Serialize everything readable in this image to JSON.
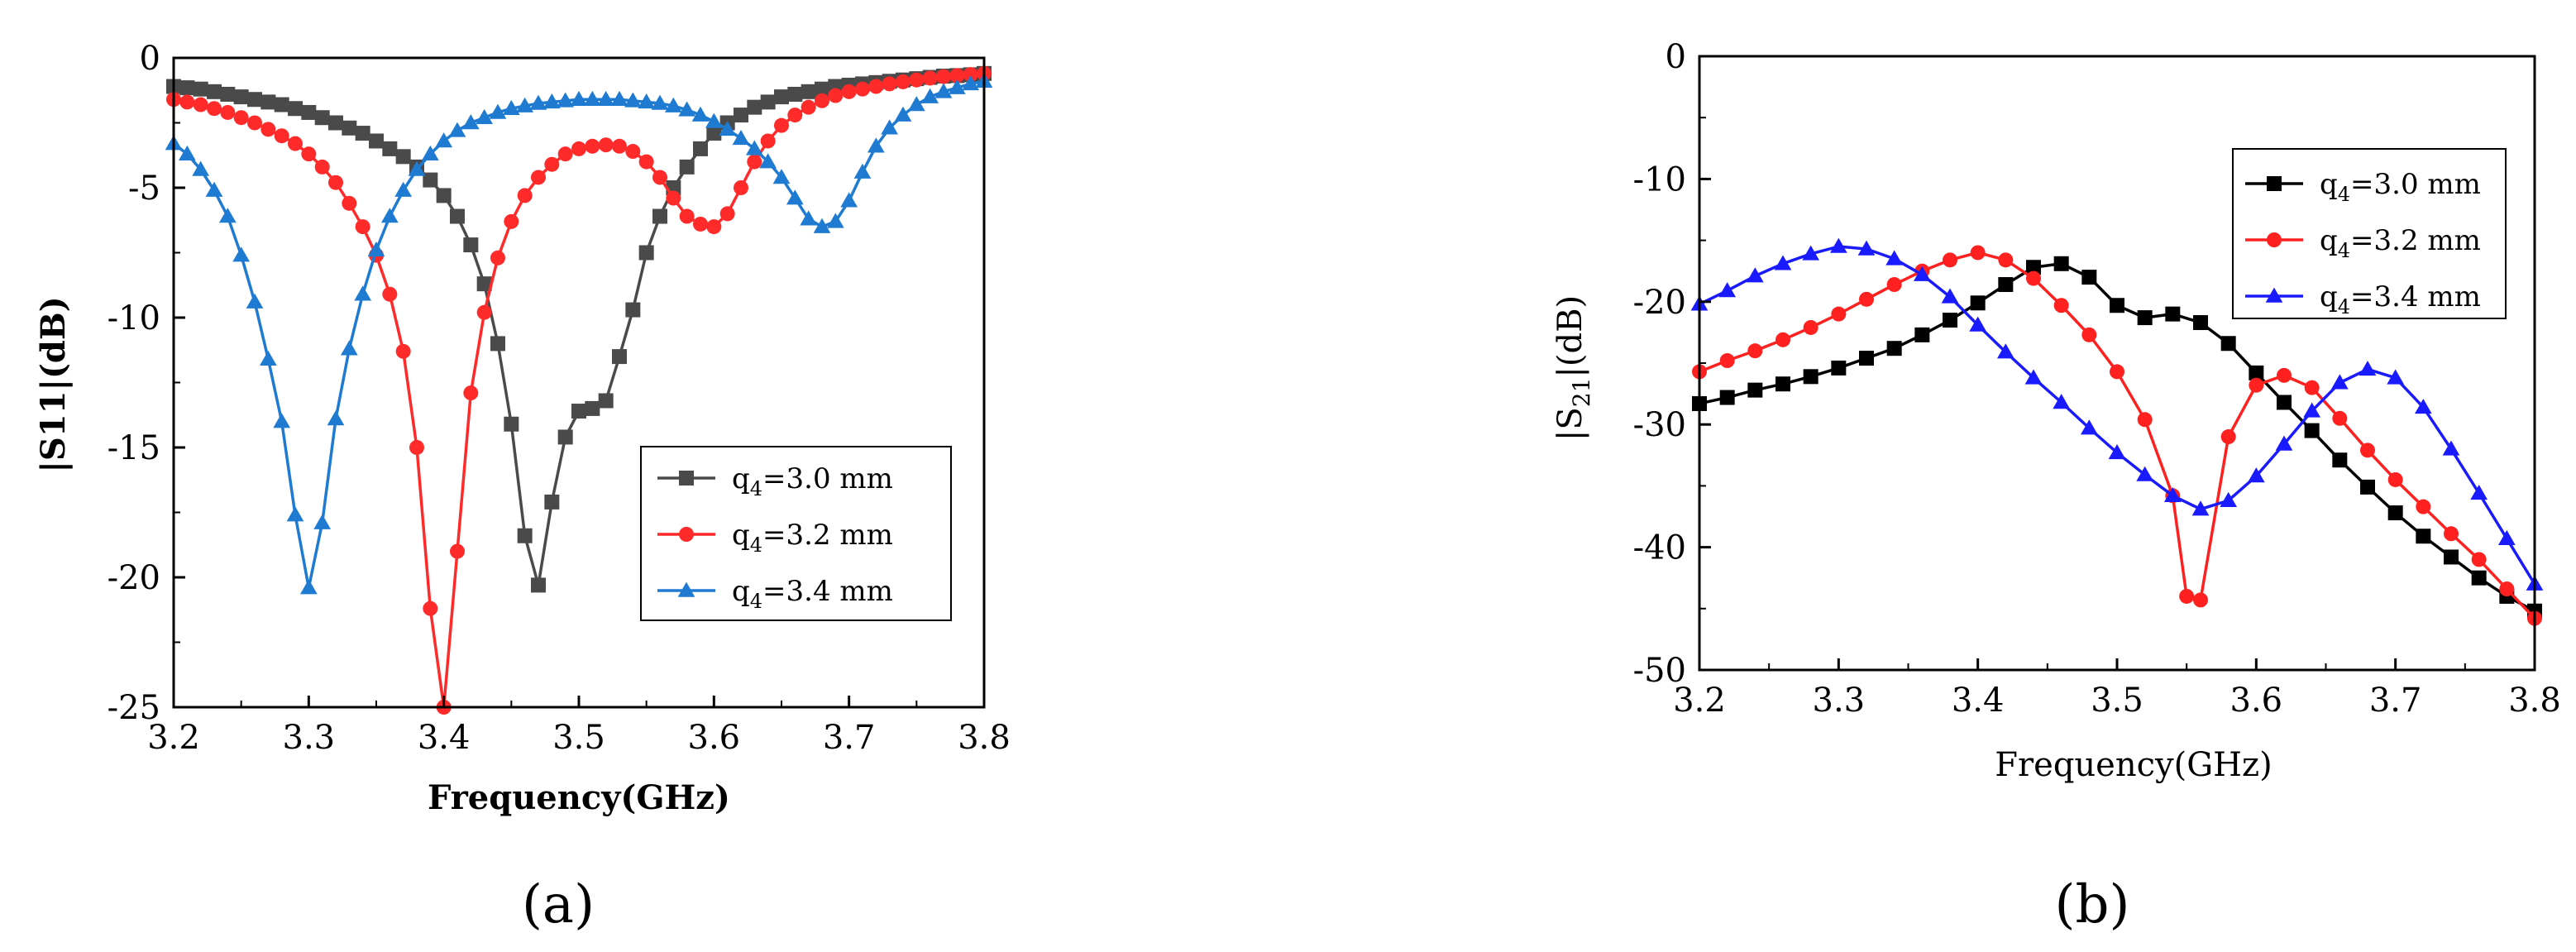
{
  "chart_data": [
    {
      "type": "line",
      "panel_label": "(a)",
      "xlabel": "Frequency(GHz)",
      "ylabel": "|S11|(dB)",
      "xlim": [
        3.2,
        3.8
      ],
      "ylim": [
        -25,
        0
      ],
      "xticks": [
        "3.2",
        "3.3",
        "3.4",
        "3.5",
        "3.6",
        "3.7",
        "3.8"
      ],
      "yticks": [
        "0",
        "-5",
        "-10",
        "-15",
        "-20",
        "-25"
      ],
      "legend_position": "bottom-right",
      "series": [
        {
          "name_main": "q",
          "name_sub": "4",
          "name_rest": "=3.0 mm",
          "color": "#4a4a4a",
          "marker": "square",
          "x": [
            3.2,
            3.21,
            3.22,
            3.23,
            3.24,
            3.25,
            3.26,
            3.27,
            3.28,
            3.29,
            3.3,
            3.31,
            3.32,
            3.33,
            3.34,
            3.35,
            3.36,
            3.37,
            3.38,
            3.39,
            3.4,
            3.41,
            3.42,
            3.43,
            3.44,
            3.45,
            3.46,
            3.47,
            3.48,
            3.49,
            3.5,
            3.51,
            3.52,
            3.53,
            3.54,
            3.55,
            3.56,
            3.57,
            3.58,
            3.59,
            3.6,
            3.61,
            3.62,
            3.63,
            3.64,
            3.65,
            3.66,
            3.67,
            3.68,
            3.69,
            3.7,
            3.71,
            3.72,
            3.73,
            3.74,
            3.75,
            3.76,
            3.77,
            3.78,
            3.79,
            3.8
          ],
          "y": [
            -1.1,
            -1.15,
            -1.2,
            -1.3,
            -1.4,
            -1.5,
            -1.6,
            -1.7,
            -1.8,
            -1.95,
            -2.1,
            -2.3,
            -2.5,
            -2.7,
            -2.9,
            -3.2,
            -3.5,
            -3.8,
            -4.2,
            -4.7,
            -5.3,
            -6.1,
            -7.2,
            -8.7,
            -11.0,
            -14.1,
            -18.4,
            -20.3,
            -17.1,
            -14.6,
            -13.6,
            -13.5,
            -13.2,
            -11.5,
            -9.7,
            -7.5,
            -6.1,
            -5.0,
            -4.2,
            -3.5,
            -2.9,
            -2.5,
            -2.2,
            -1.9,
            -1.7,
            -1.5,
            -1.4,
            -1.3,
            -1.2,
            -1.1,
            -1.05,
            -1.0,
            -0.95,
            -0.9,
            -0.85,
            -0.8,
            -0.75,
            -0.7,
            -0.68,
            -0.65,
            -0.6
          ]
        },
        {
          "name_main": "q",
          "name_sub": "4",
          "name_rest": "=3.2 mm",
          "color": "#ff2a2a",
          "marker": "circle",
          "x": [
            3.2,
            3.21,
            3.22,
            3.23,
            3.24,
            3.25,
            3.26,
            3.27,
            3.28,
            3.29,
            3.3,
            3.31,
            3.32,
            3.33,
            3.34,
            3.35,
            3.36,
            3.37,
            3.38,
            3.39,
            3.4,
            3.41,
            3.42,
            3.43,
            3.44,
            3.45,
            3.46,
            3.47,
            3.48,
            3.49,
            3.5,
            3.51,
            3.52,
            3.53,
            3.54,
            3.55,
            3.56,
            3.57,
            3.58,
            3.59,
            3.6,
            3.61,
            3.62,
            3.63,
            3.64,
            3.65,
            3.66,
            3.67,
            3.68,
            3.69,
            3.7,
            3.71,
            3.72,
            3.73,
            3.74,
            3.75,
            3.76,
            3.77,
            3.78,
            3.79,
            3.8
          ],
          "y": [
            -1.6,
            -1.7,
            -1.8,
            -1.95,
            -2.1,
            -2.3,
            -2.5,
            -2.75,
            -3.0,
            -3.3,
            -3.7,
            -4.2,
            -4.8,
            -5.6,
            -6.5,
            -7.6,
            -9.1,
            -11.3,
            -15.0,
            -21.2,
            -25.0,
            -19.0,
            -12.9,
            -9.8,
            -7.7,
            -6.3,
            -5.3,
            -4.6,
            -4.1,
            -3.7,
            -3.5,
            -3.4,
            -3.35,
            -3.4,
            -3.6,
            -4.0,
            -4.6,
            -5.4,
            -6.1,
            -6.4,
            -6.5,
            -6.0,
            -5.0,
            -4.0,
            -3.2,
            -2.6,
            -2.2,
            -1.9,
            -1.65,
            -1.45,
            -1.3,
            -1.2,
            -1.1,
            -1.0,
            -0.92,
            -0.85,
            -0.78,
            -0.72,
            -0.68,
            -0.64,
            -0.6
          ]
        },
        {
          "name_main": "q",
          "name_sub": "4",
          "name_rest": "=3.4 mm",
          "color": "#1f7ad1",
          "marker": "triangle",
          "x": [
            3.2,
            3.21,
            3.22,
            3.23,
            3.24,
            3.25,
            3.26,
            3.27,
            3.28,
            3.29,
            3.3,
            3.31,
            3.32,
            3.33,
            3.34,
            3.35,
            3.36,
            3.37,
            3.38,
            3.39,
            3.4,
            3.41,
            3.42,
            3.43,
            3.44,
            3.45,
            3.46,
            3.47,
            3.48,
            3.49,
            3.5,
            3.51,
            3.52,
            3.53,
            3.54,
            3.55,
            3.56,
            3.57,
            3.58,
            3.59,
            3.6,
            3.61,
            3.62,
            3.63,
            3.64,
            3.65,
            3.66,
            3.67,
            3.68,
            3.69,
            3.7,
            3.71,
            3.72,
            3.73,
            3.74,
            3.75,
            3.76,
            3.77,
            3.78,
            3.79,
            3.8
          ],
          "y": [
            -3.3,
            -3.7,
            -4.3,
            -5.1,
            -6.1,
            -7.6,
            -9.4,
            -11.6,
            -14.0,
            -17.6,
            -20.4,
            -17.9,
            -13.9,
            -11.2,
            -9.1,
            -7.4,
            -6.1,
            -5.1,
            -4.3,
            -3.7,
            -3.2,
            -2.8,
            -2.5,
            -2.3,
            -2.1,
            -1.95,
            -1.85,
            -1.75,
            -1.7,
            -1.65,
            -1.6,
            -1.6,
            -1.6,
            -1.6,
            -1.65,
            -1.7,
            -1.75,
            -1.85,
            -2.0,
            -2.2,
            -2.45,
            -2.75,
            -3.1,
            -3.5,
            -4.0,
            -4.6,
            -5.4,
            -6.2,
            -6.5,
            -6.3,
            -5.5,
            -4.4,
            -3.4,
            -2.7,
            -2.2,
            -1.8,
            -1.5,
            -1.3,
            -1.15,
            -1.0,
            -0.9
          ]
        }
      ]
    },
    {
      "type": "line",
      "panel_label": "(b)",
      "xlabel": "Frequency(GHz)",
      "ylabel_main": "|S",
      "ylabel_sub": "21",
      "ylabel_rest": "|(dB)",
      "xlim": [
        3.2,
        3.8
      ],
      "ylim": [
        -50,
        0
      ],
      "xticks": [
        "3.2",
        "3.3",
        "3.4",
        "3.5",
        "3.6",
        "3.7",
        "3.8"
      ],
      "yticks": [
        "0",
        "-10",
        "-20",
        "-30",
        "-40",
        "-50"
      ],
      "legend_position": "top-right",
      "series": [
        {
          "name_main": "q",
          "name_sub": "4",
          "name_rest": "=3.0 mm",
          "color": "#000000",
          "marker": "square",
          "x": [
            3.2,
            3.22,
            3.24,
            3.26,
            3.28,
            3.3,
            3.32,
            3.34,
            3.36,
            3.38,
            3.4,
            3.42,
            3.44,
            3.46,
            3.48,
            3.5,
            3.52,
            3.54,
            3.56,
            3.58,
            3.6,
            3.62,
            3.64,
            3.66,
            3.68,
            3.7,
            3.72,
            3.74,
            3.76,
            3.78,
            3.8
          ],
          "y": [
            -28.3,
            -27.8,
            -27.2,
            -26.7,
            -26.1,
            -25.4,
            -24.6,
            -23.8,
            -22.7,
            -21.5,
            -20.1,
            -18.6,
            -17.2,
            -16.9,
            -18.0,
            -20.3,
            -21.3,
            -21.0,
            -21.7,
            -23.4,
            -25.8,
            -28.2,
            -30.5,
            -32.9,
            -35.1,
            -37.2,
            -39.1,
            -40.8,
            -42.5,
            -44.0,
            -45.2
          ]
        },
        {
          "name_main": "q",
          "name_sub": "4",
          "name_rest": "=3.2 mm",
          "color": "#ff2020",
          "marker": "circle",
          "x": [
            3.2,
            3.22,
            3.24,
            3.26,
            3.28,
            3.3,
            3.32,
            3.34,
            3.36,
            3.38,
            3.4,
            3.42,
            3.44,
            3.46,
            3.48,
            3.5,
            3.52,
            3.54,
            3.55,
            3.56,
            3.58,
            3.6,
            3.62,
            3.64,
            3.66,
            3.68,
            3.7,
            3.72,
            3.74,
            3.76,
            3.78,
            3.8
          ],
          "y": [
            -25.7,
            -24.8,
            -24.0,
            -23.1,
            -22.1,
            -21.0,
            -19.8,
            -18.6,
            -17.5,
            -16.6,
            -16.0,
            -16.6,
            -18.1,
            -20.3,
            -22.7,
            -25.7,
            -29.6,
            -35.8,
            -44.0,
            -44.3,
            -31.0,
            -26.8,
            -26.0,
            -27.0,
            -29.5,
            -32.1,
            -34.5,
            -36.7,
            -38.9,
            -41.0,
            -43.4,
            -45.8
          ]
        },
        {
          "name_main": "q",
          "name_sub": "4",
          "name_rest": "=3.4 mm",
          "color": "#1a1aff",
          "marker": "triangle",
          "x": [
            3.2,
            3.22,
            3.24,
            3.26,
            3.28,
            3.3,
            3.32,
            3.34,
            3.36,
            3.38,
            3.4,
            3.42,
            3.44,
            3.46,
            3.48,
            3.5,
            3.52,
            3.54,
            3.56,
            3.58,
            3.6,
            3.62,
            3.64,
            3.66,
            3.68,
            3.7,
            3.72,
            3.74,
            3.76,
            3.78,
            3.8
          ],
          "y": [
            -20.2,
            -19.1,
            -17.9,
            -16.9,
            -16.1,
            -15.5,
            -15.7,
            -16.5,
            -17.8,
            -19.6,
            -21.9,
            -24.1,
            -26.2,
            -28.2,
            -30.3,
            -32.3,
            -34.1,
            -35.8,
            -36.9,
            -36.2,
            -34.2,
            -31.6,
            -28.9,
            -26.6,
            -25.5,
            -26.2,
            -28.6,
            -32.0,
            -35.6,
            -39.3,
            -43.0
          ]
        }
      ]
    }
  ]
}
